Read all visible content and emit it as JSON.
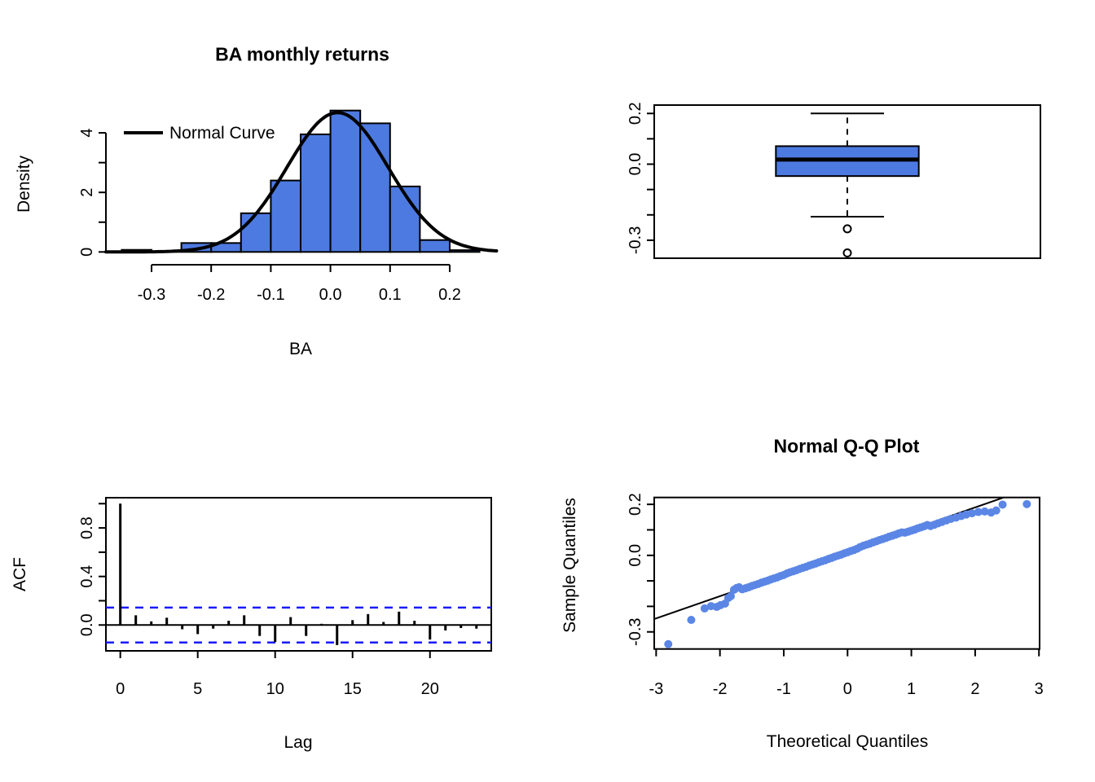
{
  "figure": {
    "background": "#ffffff",
    "colors": {
      "bar_fill": "#4D7AE0",
      "point_fill": "#5B86E5",
      "confidence_line": "#1A1AFF",
      "axis": "#000000"
    }
  },
  "chart_data": [
    {
      "id": "histogram",
      "type": "bar",
      "title": "BA monthly returns",
      "xlabel": "BA",
      "ylabel": "Density",
      "bins": {
        "start": -0.35,
        "width": 0.05,
        "densities": [
          0.07,
          0,
          0.3,
          0.3,
          1.3,
          2.4,
          3.95,
          4.75,
          4.32,
          2.2,
          0.4,
          0.06
        ]
      },
      "normal_curve": {
        "mean": 0.012,
        "sd": 0.085,
        "peak_density": 4.68
      },
      "legend": [
        {
          "label": "Normal Curve",
          "symbol": "line",
          "color": "#000000"
        }
      ],
      "x_ticks": {
        "values": [
          -0.3,
          -0.2,
          -0.1,
          0,
          0.1,
          0.2
        ],
        "labels": [
          "-0.3",
          "-0.2",
          "-0.1",
          "0.0",
          "0.1",
          "0.2"
        ]
      },
      "y_ticks": {
        "values": [
          0,
          1,
          2,
          3,
          4
        ],
        "labels": [
          "0",
          "",
          "2",
          "",
          "4"
        ]
      },
      "xlim": [
        -0.3765,
        0.282
      ],
      "ylim": [
        0,
        4.9
      ],
      "grid": false,
      "legend_position": "top-left-inside"
    },
    {
      "id": "boxplot",
      "type": "boxplot",
      "title": "",
      "xlabel": "",
      "ylabel": "",
      "stats": {
        "upper_whisker": 0.2,
        "q3": 0.071,
        "median": 0.018,
        "q1": -0.047,
        "lower_whisker": -0.207
      },
      "outliers": [
        -0.255,
        -0.35
      ],
      "y_ticks": {
        "values": [
          0.2,
          0.1,
          0,
          -0.1,
          -0.2,
          -0.3
        ],
        "labels": [
          "0.2",
          "",
          "0.0",
          "",
          "",
          "-0.3"
        ]
      },
      "ylim": [
        -0.371,
        0.233
      ],
      "box_width_frac": 0.37,
      "cap_width_frac": 0.19,
      "grid": false
    },
    {
      "id": "acf",
      "type": "bar",
      "title": "",
      "xlabel": "Lag",
      "ylabel": "ACF",
      "lags": [
        0,
        1,
        2,
        3,
        4,
        5,
        6,
        7,
        8,
        9,
        10,
        11,
        12,
        13,
        14,
        15,
        16,
        17,
        18,
        19,
        20,
        21,
        22,
        23
      ],
      "values": [
        1.0,
        0.08,
        0.03,
        0.06,
        -0.035,
        -0.075,
        -0.03,
        0.035,
        0.08,
        -0.09,
        -0.14,
        0.065,
        -0.09,
        0.01,
        -0.165,
        0.04,
        0.09,
        0.025,
        0.11,
        0.035,
        -0.12,
        -0.045,
        -0.025,
        -0.03
      ],
      "confidence_bound": 0.144,
      "x_ticks": {
        "values": [
          0,
          5,
          10,
          15,
          20
        ],
        "labels": [
          "0",
          "5",
          "10",
          "15",
          "20"
        ]
      },
      "y_ticks": {
        "values": [
          0,
          0.2,
          0.4,
          0.6,
          0.8,
          1.0
        ],
        "labels": [
          "0.0",
          "",
          "0.4",
          "",
          "0.8",
          ""
        ]
      },
      "xlim": [
        -0.93,
        23.96
      ],
      "ylim": [
        -0.213,
        1.049
      ],
      "grid": false
    },
    {
      "id": "qqplot",
      "type": "scatter",
      "title": "Normal Q-Q Plot",
      "xlabel": "Theoretical Quantiles",
      "ylabel": "Sample Quantiles",
      "reference_line": {
        "intercept": 0.014,
        "slope": 0.087
      },
      "x_ticks": {
        "values": [
          -3,
          -2,
          -1,
          0,
          1,
          2,
          3
        ],
        "labels": [
          "-3",
          "-2",
          "-1",
          "0",
          "1",
          "2",
          "3"
        ]
      },
      "y_ticks": {
        "values": [
          0.2,
          0.1,
          0,
          -0.1,
          -0.2,
          -0.3
        ],
        "labels": [
          "0.2",
          "",
          "0.0",
          "",
          "",
          "-0.3"
        ]
      },
      "xlim": [
        -3.03,
        3.01
      ],
      "ylim": [
        -0.367,
        0.227
      ],
      "points": [
        [
          -2.81,
          -0.348
        ],
        [
          -2.45,
          -0.253
        ],
        [
          -2.24,
          -0.208
        ],
        [
          -2.14,
          -0.199
        ],
        [
          -2.05,
          -0.202
        ],
        [
          -1.99,
          -0.195
        ],
        [
          -1.92,
          -0.189
        ],
        [
          -1.87,
          -0.167
        ],
        [
          -1.83,
          -0.16
        ],
        [
          -1.78,
          -0.135
        ],
        [
          -1.74,
          -0.128
        ],
        [
          -1.7,
          -0.125
        ],
        [
          -1.65,
          -0.133
        ],
        [
          -1.6,
          -0.129
        ],
        [
          -1.55,
          -0.125
        ],
        [
          -1.5,
          -0.12
        ],
        [
          -1.45,
          -0.116
        ],
        [
          -1.4,
          -0.112
        ],
        [
          -1.35,
          -0.107
        ],
        [
          -1.3,
          -0.103
        ],
        [
          -1.25,
          -0.099
        ],
        [
          -1.2,
          -0.094
        ],
        [
          -1.15,
          -0.09
        ],
        [
          -1.1,
          -0.086
        ],
        [
          -1.05,
          -0.081
        ],
        [
          -1.0,
          -0.077
        ],
        [
          -0.95,
          -0.071
        ],
        [
          -0.9,
          -0.066
        ],
        [
          -0.85,
          -0.062
        ],
        [
          -0.8,
          -0.058
        ],
        [
          -0.75,
          -0.053
        ],
        [
          -0.7,
          -0.049
        ],
        [
          -0.65,
          -0.045
        ],
        [
          -0.6,
          -0.04
        ],
        [
          -0.55,
          -0.036
        ],
        [
          -0.5,
          -0.032
        ],
        [
          -0.45,
          -0.027
        ],
        [
          -0.4,
          -0.023
        ],
        [
          -0.35,
          -0.019
        ],
        [
          -0.3,
          -0.014
        ],
        [
          -0.25,
          -0.01
        ],
        [
          -0.2,
          -0.005
        ],
        [
          -0.15,
          -0.001
        ],
        [
          -0.1,
          0.003
        ],
        [
          -0.05,
          0.008
        ],
        [
          0.0,
          0.012
        ],
        [
          0.05,
          0.017
        ],
        [
          0.1,
          0.021
        ],
        [
          0.15,
          0.026
        ],
        [
          0.2,
          0.033
        ],
        [
          0.25,
          0.038
        ],
        [
          0.3,
          0.042
        ],
        [
          0.35,
          0.046
        ],
        [
          0.4,
          0.051
        ],
        [
          0.45,
          0.055
        ],
        [
          0.5,
          0.06
        ],
        [
          0.55,
          0.064
        ],
        [
          0.6,
          0.068
        ],
        [
          0.65,
          0.073
        ],
        [
          0.7,
          0.077
        ],
        [
          0.75,
          0.081
        ],
        [
          0.8,
          0.086
        ],
        [
          0.85,
          0.09
        ],
        [
          0.9,
          0.089
        ],
        [
          0.95,
          0.093
        ],
        [
          1.0,
          0.097
        ],
        [
          1.05,
          0.101
        ],
        [
          1.1,
          0.106
        ],
        [
          1.15,
          0.11
        ],
        [
          1.2,
          0.114
        ],
        [
          1.25,
          0.119
        ],
        [
          1.3,
          0.115
        ],
        [
          1.36,
          0.12
        ],
        [
          1.42,
          0.126
        ],
        [
          1.48,
          0.131
        ],
        [
          1.55,
          0.137
        ],
        [
          1.62,
          0.143
        ],
        [
          1.7,
          0.148
        ],
        [
          1.78,
          0.154
        ],
        [
          1.86,
          0.16
        ],
        [
          1.95,
          0.165
        ],
        [
          2.05,
          0.17
        ],
        [
          2.15,
          0.172
        ],
        [
          2.25,
          0.168
        ],
        [
          2.33,
          0.176
        ],
        [
          2.43,
          0.199
        ],
        [
          2.81,
          0.201
        ]
      ],
      "grid": false
    }
  ]
}
